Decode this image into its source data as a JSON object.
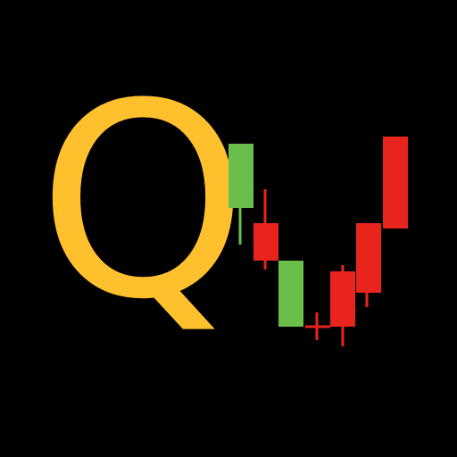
{
  "logo": {
    "letter": "Q",
    "letter_color": "#FFC02E",
    "up_color": "#6ABF4B",
    "down_color": "#E8241C",
    "background": "#000000"
  }
}
